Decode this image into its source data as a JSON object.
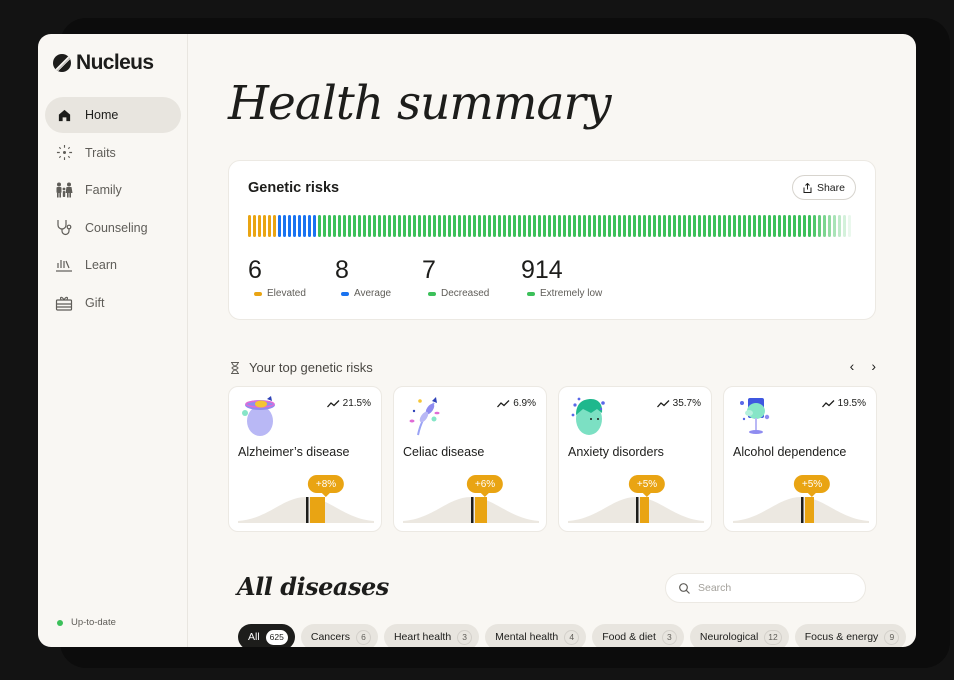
{
  "app": {
    "name": "Nucleus"
  },
  "sidebar": {
    "items": [
      {
        "label": "Home",
        "icon": "home-icon",
        "active": true
      },
      {
        "label": "Traits",
        "icon": "sparkle-icon",
        "active": false
      },
      {
        "label": "Family",
        "icon": "family-icon",
        "active": false
      },
      {
        "label": "Counseling",
        "icon": "stethoscope-icon",
        "active": false
      },
      {
        "label": "Learn",
        "icon": "learn-icon",
        "active": false
      },
      {
        "label": "Gift",
        "icon": "gift-icon",
        "active": false
      }
    ],
    "status": {
      "label": "Up-to-date",
      "color": "#3cc05a"
    }
  },
  "main": {
    "title": "Health summary",
    "genetic_risks": {
      "title": "Genetic risks",
      "share_label": "Share",
      "stats": [
        {
          "value": "6",
          "label": "Elevated",
          "color": "#e9a413"
        },
        {
          "value": "8",
          "label": "Average",
          "color": "#1a73f0"
        },
        {
          "value": "7",
          "label": "Decreased",
          "color": "#3cc05a"
        },
        {
          "value": "914",
          "label": "Extremely low",
          "color": "#3cc05a"
        }
      ]
    },
    "top_risks": {
      "title": "Your top genetic risks",
      "prev_label": "‹",
      "next_label": "›",
      "cards": [
        {
          "name": "Alzheimer’s disease",
          "risk": "21.5%",
          "delta": "+8%"
        },
        {
          "name": "Celiac disease",
          "risk": "6.9%",
          "delta": "+6%"
        },
        {
          "name": "Anxiety disorders",
          "risk": "35.7%",
          "delta": "+5%"
        },
        {
          "name": "Alcohol dependence",
          "risk": "19.5%",
          "delta": "+5%"
        }
      ]
    },
    "all_diseases": {
      "title": "All diseases",
      "search_placeholder": "Search",
      "chips": [
        {
          "label": "All",
          "count": "625",
          "active": true
        },
        {
          "label": "Cancers",
          "count": "6"
        },
        {
          "label": "Heart health",
          "count": "3"
        },
        {
          "label": "Mental health",
          "count": "4"
        },
        {
          "label": "Food & diet",
          "count": "3"
        },
        {
          "label": "Neurological",
          "count": "12"
        },
        {
          "label": "Focus & energy",
          "count": "9"
        }
      ]
    }
  },
  "colors": {
    "elevated": "#e9a413",
    "average": "#1a73f0",
    "decreased": "#3cc05a",
    "background": "#f9f7f3"
  }
}
